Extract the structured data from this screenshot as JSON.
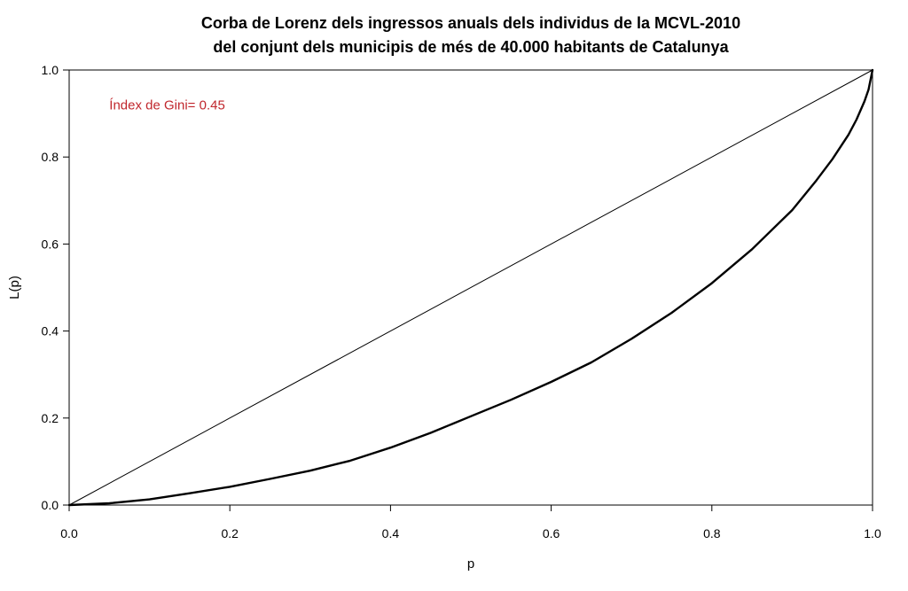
{
  "chart_data": {
    "type": "line",
    "title": "Corba de Lorenz dels ingressos anuals dels individus de la MCVL-2010",
    "subtitle": "del conjunt dels municipis de més de 40.000 habitants de Catalunya",
    "xlabel": "p",
    "ylabel": "L(p)",
    "xlim": [
      0,
      1
    ],
    "ylim": [
      0,
      1
    ],
    "x_ticks": [
      "0.0",
      "0.2",
      "0.4",
      "0.6",
      "0.8",
      "1.0"
    ],
    "y_ticks": [
      "0.0",
      "0.2",
      "0.4",
      "0.6",
      "0.8",
      "1.0"
    ],
    "grid": false,
    "annotation": {
      "text": "Índex de Gini= 0.45",
      "x": 0.05,
      "y": 0.92,
      "color": "#c0262c"
    },
    "series": [
      {
        "color": "#000000",
        "x": [
          0,
          1
        ],
        "y": [
          0,
          1
        ]
      },
      {
        "color": "#000000",
        "x": [
          0,
          0.05,
          0.1,
          0.15,
          0.2,
          0.25,
          0.3,
          0.35,
          0.4,
          0.45,
          0.5,
          0.55,
          0.6,
          0.65,
          0.7,
          0.75,
          0.8,
          0.85,
          0.9,
          0.93,
          0.95,
          0.97,
          0.98,
          0.99,
          0.995,
          1.0
        ],
        "y": [
          0,
          0.004,
          0.013,
          0.027,
          0.042,
          0.06,
          0.079,
          0.102,
          0.132,
          0.166,
          0.204,
          0.242,
          0.283,
          0.328,
          0.382,
          0.442,
          0.51,
          0.588,
          0.678,
          0.746,
          0.795,
          0.851,
          0.886,
          0.928,
          0.955,
          1.0
        ]
      }
    ]
  }
}
